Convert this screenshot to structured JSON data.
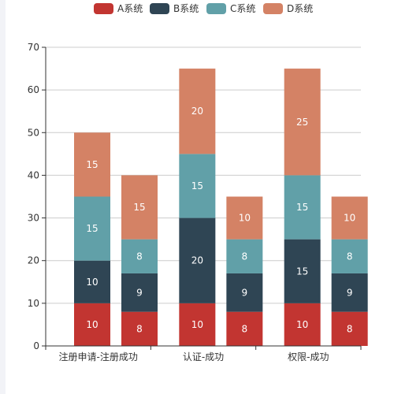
{
  "chart_data": {
    "type": "bar",
    "stacked": true,
    "categories": [
      "注册申请-注册成功",
      "认证-成功",
      "权限-成功"
    ],
    "legend": {
      "position": "top-center",
      "items": [
        {
          "name": "A系统",
          "color": "#c23531"
        },
        {
          "name": "B系统",
          "color": "#2f4554"
        },
        {
          "name": "C系统",
          "color": "#61a0a8"
        },
        {
          "name": "D系统",
          "color": "#d48265"
        }
      ]
    },
    "stacks": [
      {
        "series": [
          {
            "name": "A系统",
            "color": "#c23531",
            "values": [
              10,
              10,
              10
            ]
          },
          {
            "name": "B系统",
            "color": "#2f4554",
            "values": [
              10,
              20,
              15
            ]
          },
          {
            "name": "C系统",
            "color": "#61a0a8",
            "values": [
              15,
              15,
              15
            ]
          },
          {
            "name": "D系统",
            "color": "#d48265",
            "values": [
              15,
              20,
              25
            ]
          }
        ]
      },
      {
        "series": [
          {
            "name": "A系统",
            "color": "#c23531",
            "values": [
              8,
              8,
              8
            ]
          },
          {
            "name": "B系统",
            "color": "#2f4554",
            "values": [
              9,
              9,
              9
            ]
          },
          {
            "name": "C系统",
            "color": "#61a0a8",
            "values": [
              8,
              8,
              8
            ]
          },
          {
            "name": "D系统",
            "color": "#d48265",
            "values": [
              15,
              10,
              10
            ]
          }
        ]
      }
    ],
    "yaxis": {
      "min": 0,
      "max": 70,
      "ticks": [
        0,
        10,
        20,
        30,
        40,
        50,
        60,
        70
      ]
    },
    "grid": true,
    "title": "",
    "xlabel": "",
    "ylabel": ""
  }
}
